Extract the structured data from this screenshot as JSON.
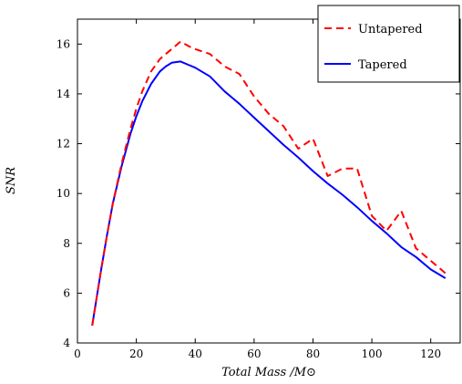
{
  "chart_data": {
    "type": "line",
    "xlabel": "Total Mass /M⊙",
    "ylabel": "SNR",
    "xlim": [
      0,
      130
    ],
    "ylim": [
      4,
      17
    ],
    "xticks": [
      0,
      20,
      40,
      60,
      80,
      100,
      120
    ],
    "yticks": [
      4,
      6,
      8,
      10,
      12,
      14,
      16
    ],
    "grid": false,
    "legend_position": "top-right",
    "series": [
      {
        "name": "Untapered",
        "color": "#ff0000",
        "dash": "dashed",
        "x": [
          5,
          8,
          10,
          12,
          15,
          18,
          20,
          22,
          25,
          28,
          30,
          32,
          35,
          38,
          40,
          45,
          50,
          55,
          60,
          65,
          70,
          75,
          80,
          85,
          90,
          95,
          100,
          105,
          110,
          115,
          120,
          125
        ],
        "y": [
          4.7,
          6.9,
          8.3,
          9.6,
          11.2,
          12.6,
          13.4,
          14.1,
          14.9,
          15.4,
          15.6,
          15.8,
          16.1,
          15.9,
          15.8,
          15.6,
          15.1,
          14.8,
          13.9,
          13.2,
          12.7,
          11.8,
          12.2,
          10.7,
          11.0,
          11.0,
          9.1,
          8.5,
          9.3,
          7.8,
          7.3,
          6.8
        ]
      },
      {
        "name": "Tapered",
        "color": "#0000ff",
        "dash": "solid",
        "x": [
          5,
          8,
          10,
          12,
          15,
          18,
          20,
          22,
          25,
          28,
          30,
          32,
          35,
          38,
          40,
          45,
          50,
          55,
          60,
          65,
          70,
          75,
          80,
          85,
          90,
          95,
          100,
          105,
          110,
          115,
          120,
          125
        ],
        "y": [
          4.7,
          6.9,
          8.3,
          9.6,
          11.1,
          12.4,
          13.1,
          13.7,
          14.4,
          14.9,
          15.1,
          15.25,
          15.3,
          15.15,
          15.05,
          14.7,
          14.1,
          13.6,
          13.05,
          12.5,
          11.95,
          11.45,
          10.9,
          10.4,
          9.95,
          9.45,
          8.9,
          8.4,
          7.85,
          7.45,
          6.95,
          6.6
        ]
      }
    ]
  }
}
